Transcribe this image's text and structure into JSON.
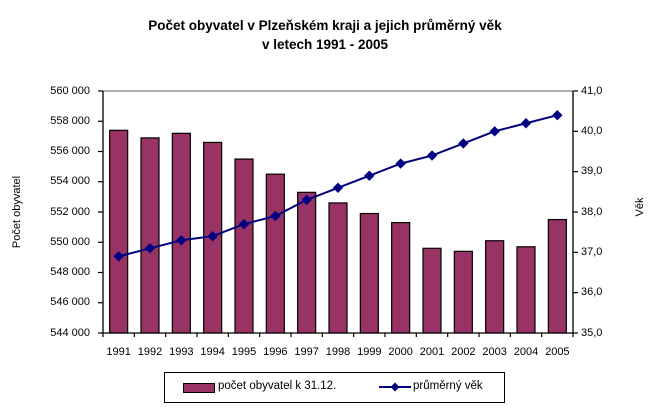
{
  "title": {
    "line1": "Počet obyvatel v Plzeňském kraji a jejich průměrný věk",
    "line2": "v letech 1991 - 2005"
  },
  "axes": {
    "left": {
      "title": "Počet obyvatel",
      "tick_labels": [
        "560 000",
        "558 000",
        "556 000",
        "554 000",
        "552 000",
        "550 000",
        "548 000",
        "546 000",
        "544 000"
      ]
    },
    "right": {
      "title": "Věk",
      "tick_labels": [
        "41,0",
        "40,0",
        "39,0",
        "38,0",
        "37,0",
        "36,0",
        "35,0"
      ]
    },
    "bottom": {
      "tick_labels": [
        "1991",
        "1992",
        "1993",
        "1994",
        "1995",
        "1996",
        "1997",
        "1998",
        "1999",
        "2000",
        "2001",
        "2002",
        "2003",
        "2004",
        "2005"
      ]
    }
  },
  "legend": {
    "bar_label": "počet obyvatel k 31.12.",
    "line_label": "průměrný věk"
  },
  "colors": {
    "bar_fill": "#993366",
    "bar_border": "#000000",
    "line": "#000080",
    "marker": "#000080",
    "axis": "#000000",
    "plot_top_border": "#808080",
    "background": "#ffffff"
  },
  "chart_data": {
    "type": "bar",
    "combo": "bar+line",
    "title": "Počet obyvatel v Plzeňském kraji a jejich průměrný věk v letech 1991 - 2005",
    "categories": [
      "1991",
      "1992",
      "1993",
      "1994",
      "1995",
      "1996",
      "1997",
      "1998",
      "1999",
      "2000",
      "2001",
      "2002",
      "2003",
      "2004",
      "2005"
    ],
    "series": [
      {
        "name": "počet obyvatel k 31.12.",
        "type": "bar",
        "axis": "left",
        "values": [
          557400,
          556900,
          557200,
          556600,
          555500,
          554500,
          553300,
          552600,
          551900,
          551300,
          549600,
          549400,
          550100,
          549700,
          551500
        ]
      },
      {
        "name": "průměrný věk",
        "type": "line",
        "axis": "right",
        "values": [
          36.9,
          37.1,
          37.3,
          37.4,
          37.7,
          37.9,
          38.3,
          38.6,
          38.9,
          39.2,
          39.4,
          39.7,
          40.0,
          40.2,
          40.4
        ]
      }
    ],
    "xlabel": "",
    "ylabel_left": "Počet obyvatel",
    "ylabel_right": "Věk",
    "ylim_left": [
      544000,
      560000
    ],
    "ylim_right": [
      35.0,
      41.0
    ],
    "ytick_step_left": 2000,
    "ytick_step_right": 1.0,
    "grid": false,
    "legend_position": "bottom"
  }
}
